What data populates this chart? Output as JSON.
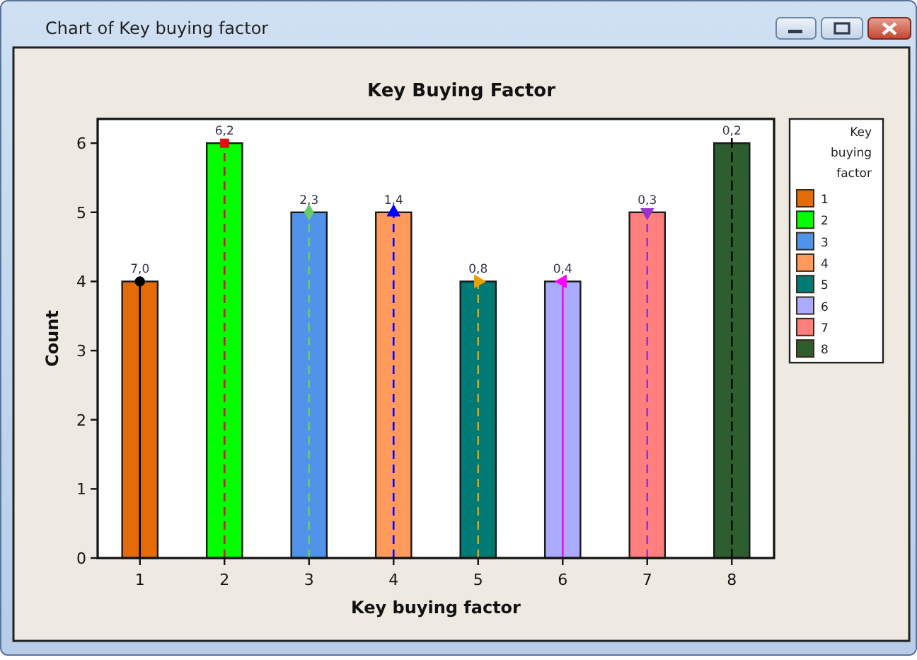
{
  "chart_data": {
    "type": "bar",
    "title": "Key Buying Factor",
    "xlabel": "Key buying factor",
    "ylabel": "Count",
    "legend_title": "Key buying factor",
    "categories": [
      "1",
      "2",
      "3",
      "4",
      "5",
      "6",
      "7",
      "8"
    ],
    "series": [
      {
        "name": "1",
        "color": "#e36c09",
        "values": [
          4,
          null,
          null,
          null,
          null,
          null,
          null,
          null
        ]
      },
      {
        "name": "2",
        "color": "#00ff00",
        "values": [
          null,
          6,
          null,
          null,
          null,
          null,
          null,
          null
        ]
      },
      {
        "name": "3",
        "color": "#4f94e8",
        "values": [
          null,
          null,
          5,
          null,
          null,
          null,
          null,
          null
        ]
      },
      {
        "name": "4",
        "color": "#ff9a5c",
        "values": [
          null,
          null,
          null,
          5,
          null,
          null,
          null,
          null
        ]
      },
      {
        "name": "5",
        "color": "#007a74",
        "values": [
          null,
          null,
          null,
          null,
          4,
          null,
          null,
          null
        ]
      },
      {
        "name": "6",
        "color": "#aaaaff",
        "values": [
          null,
          null,
          null,
          null,
          null,
          4,
          null,
          null
        ]
      },
      {
        "name": "7",
        "color": "#ff7f7f",
        "values": [
          null,
          null,
          null,
          null,
          null,
          null,
          5,
          null
        ]
      },
      {
        "name": "8",
        "color": "#2e5e30",
        "values": [
          null,
          null,
          null,
          null,
          null,
          null,
          null,
          6
        ]
      },
      {
        "type": "lollipop",
        "color": "#000000",
        "marker": "circle",
        "line_style": "solid",
        "values": [
          4,
          null,
          null,
          null,
          null,
          null,
          null,
          null
        ]
      },
      {
        "type": "lollipop",
        "color": "#e01010",
        "marker": "square",
        "line_style": "dashed",
        "values": [
          null,
          6,
          null,
          null,
          null,
          null,
          null,
          null
        ]
      },
      {
        "type": "lollipop",
        "color": "#66cc66",
        "marker": "diamond",
        "line_style": "dashed",
        "values": [
          null,
          null,
          5,
          null,
          null,
          null,
          null,
          null
        ]
      },
      {
        "type": "lollipop",
        "color": "#0000ff",
        "marker": "triangle",
        "line_style": "dashed",
        "values": [
          null,
          null,
          null,
          5,
          null,
          null,
          null,
          null
        ]
      },
      {
        "type": "lollipop",
        "color": "#e8a000",
        "marker": "triangle-right",
        "line_style": "dashed",
        "values": [
          null,
          null,
          null,
          null,
          4,
          null,
          null,
          null
        ]
      },
      {
        "type": "lollipop",
        "color": "#ff00ff",
        "marker": "triangle-left",
        "line_style": "solid",
        "values": [
          null,
          null,
          null,
          null,
          null,
          4,
          null,
          null
        ]
      },
      {
        "type": "lollipop",
        "color": "#9933cc",
        "marker": "triangle-down",
        "line_style": "dashed",
        "values": [
          null,
          null,
          null,
          null,
          null,
          null,
          5,
          null
        ]
      },
      {
        "type": "line",
        "color": "#000000",
        "line_style": "dashed",
        "x": [
          "8",
          "8"
        ],
        "values": [
          0,
          6.1
        ]
      }
    ],
    "ylim": [
      0,
      6.35
    ],
    "yticks": [
      0,
      1,
      2,
      3,
      4,
      5,
      6
    ],
    "legend": "right",
    "annotations": [
      "Chart of Key buying factor",
      {
        "text": "7,0",
        "x": "1",
        "y": 4
      },
      {
        "text": "6,2",
        "x": "2",
        "y": 6
      },
      {
        "text": "2,3",
        "x": "3",
        "y": 5
      },
      {
        "text": "1,4",
        "x": "4",
        "y": 5
      },
      {
        "text": "0,8",
        "x": "5",
        "y": 4
      },
      {
        "text": "0,4",
        "x": "6",
        "y": 4
      },
      {
        "text": "0,3",
        "x": "7",
        "y": 5
      },
      {
        "text": "0,2",
        "x": "8",
        "y": 6
      }
    ]
  }
}
